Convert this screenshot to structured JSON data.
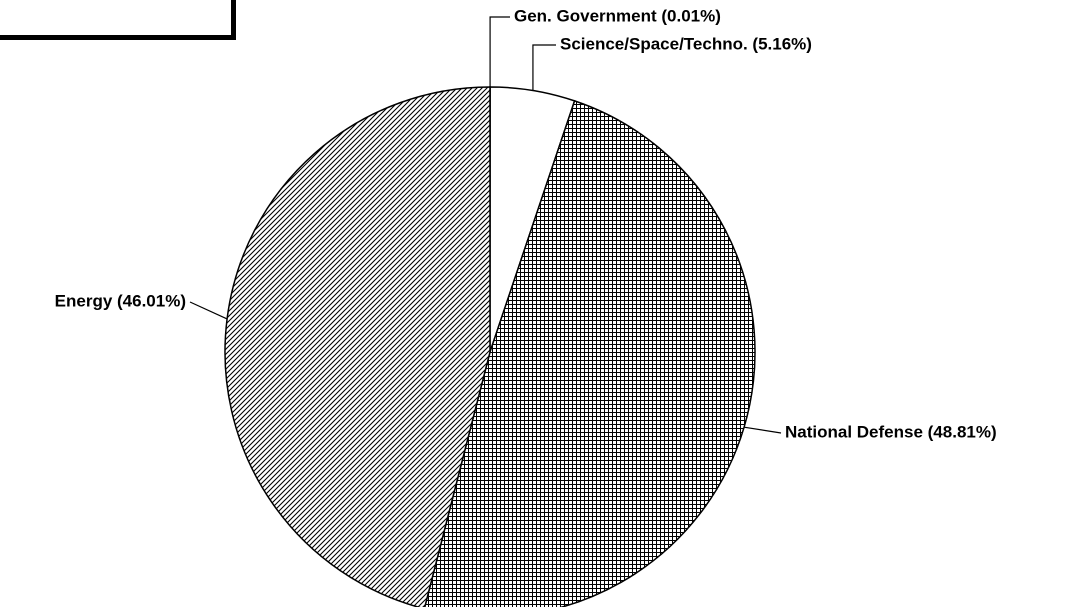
{
  "chart_data": {
    "type": "pie",
    "value_labels": [
      "Gen. Government (0.01%)",
      "Science/Space/Techno. (5.16%)",
      "National Defense (48.81%)",
      "Energy (46.01%)"
    ],
    "values": [
      0.01,
      5.16,
      48.81,
      46.01
    ],
    "fills": [
      "white",
      "white",
      "grid",
      "diagonal"
    ]
  }
}
